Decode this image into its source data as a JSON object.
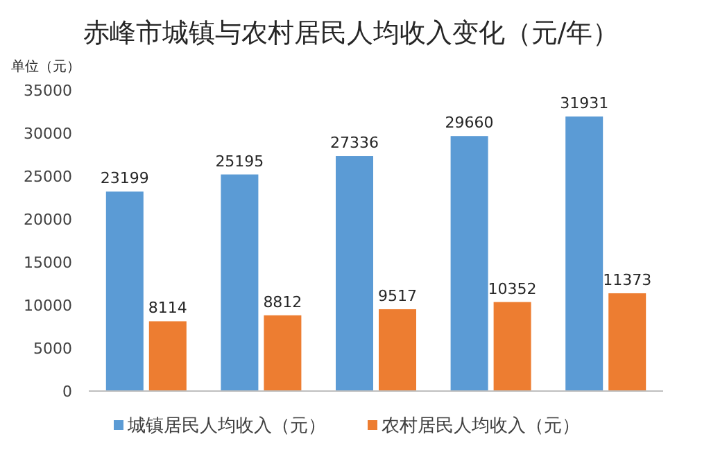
{
  "chart_data": {
    "type": "bar",
    "title": "赤峰市城镇与农村居民人均收入变化（元/年）",
    "ylabel": "单位（元）",
    "categories": [
      null,
      null,
      null,
      null,
      null
    ],
    "series": [
      {
        "name": "城镇居民人均收入（元）",
        "color": "#5b9bd5",
        "values": [
          23199,
          25195,
          27336,
          29660,
          31931
        ]
      },
      {
        "name": "农村居民人均收入（元）",
        "color": "#ed7d31",
        "values": [
          8114,
          8812,
          9517,
          10352,
          11373
        ]
      }
    ],
    "ylim": [
      0,
      35000
    ],
    "yticks": [
      0,
      5000,
      10000,
      15000,
      20000,
      25000,
      30000,
      35000
    ],
    "data_labels": true,
    "legend": "bottom"
  }
}
